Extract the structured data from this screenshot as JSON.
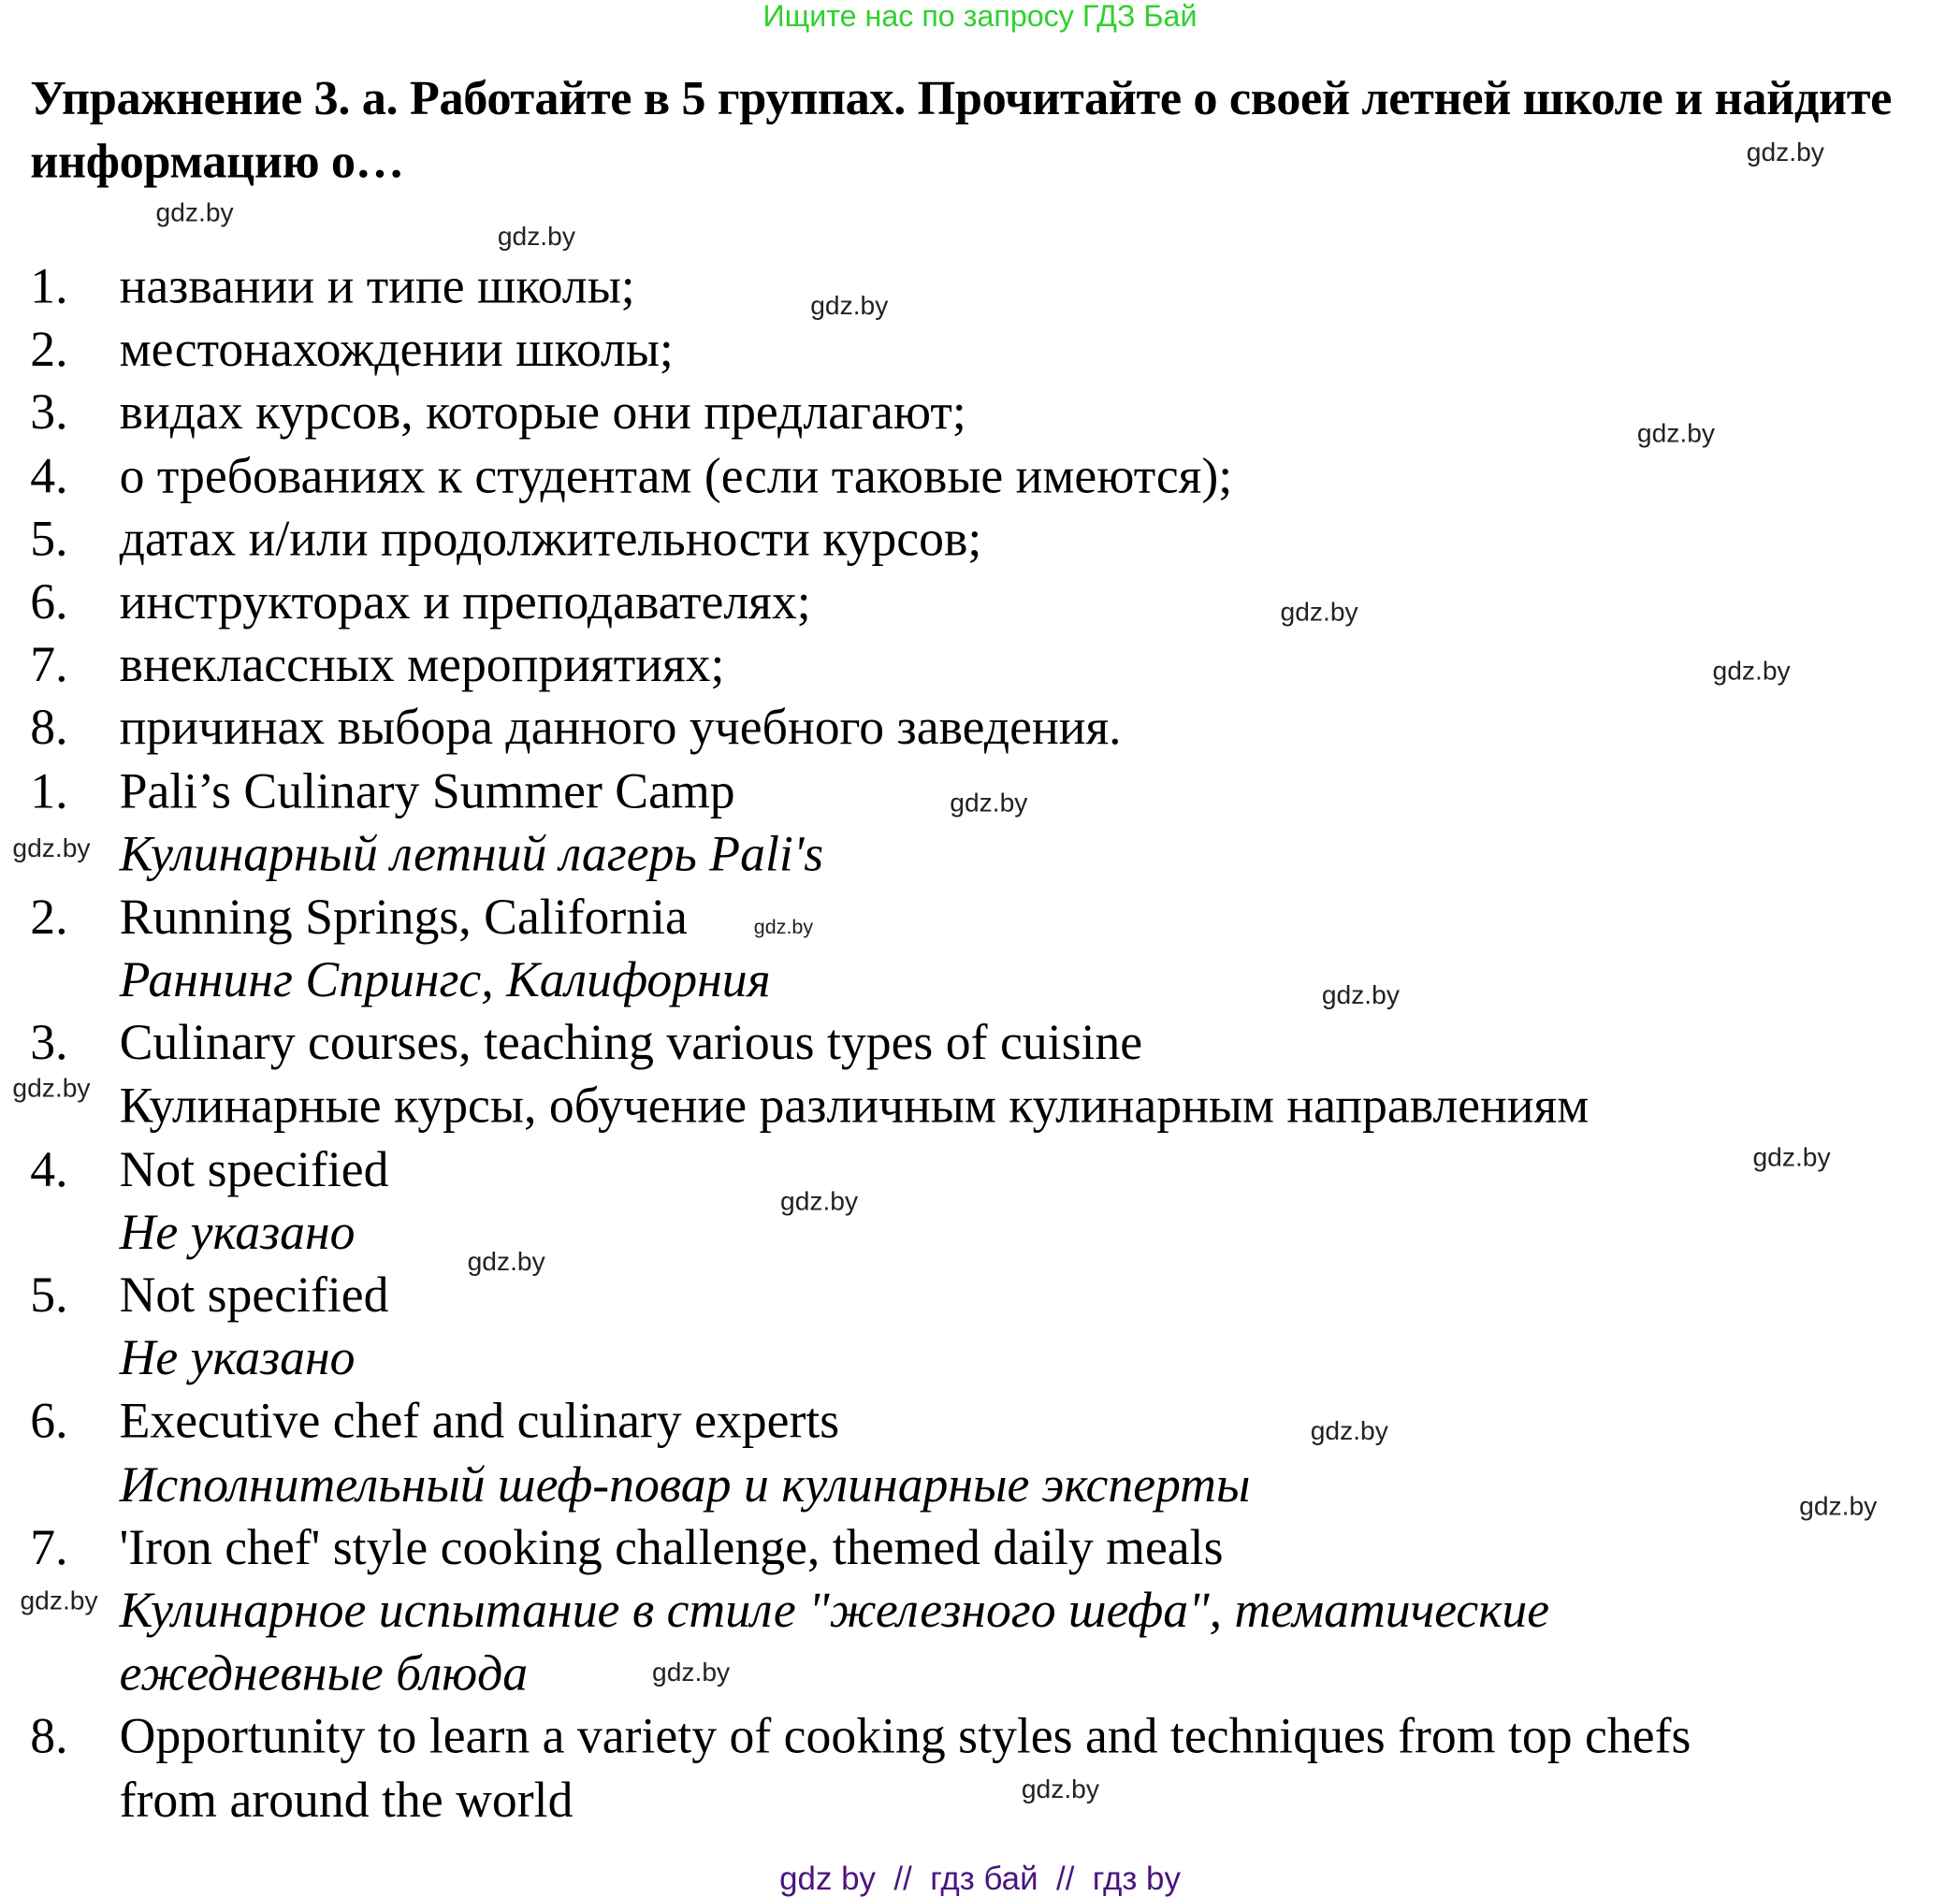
{
  "banner": "Ищите нас по запросу ГДЗ Бай",
  "title": "Упражнение 3. а. Работайте в 5 группах. Прочитайте о своей летней школе и найдите информацию о…",
  "rows": [
    {
      "num": "1.",
      "text": "названии и типе школы;",
      "italic": false
    },
    {
      "num": "2.",
      "text": "местонахождении школы;",
      "italic": false
    },
    {
      "num": "3.",
      "text": "видах курсов, которые они предлагают;",
      "italic": false
    },
    {
      "num": "4.",
      "text": "о требованиях к студентам (если таковые имеются);",
      "italic": false
    },
    {
      "num": "5.",
      "text": "датах и/или продолжительности курсов;",
      "italic": false
    },
    {
      "num": "6.",
      "text": "инструкторах и преподавателях;",
      "italic": false
    },
    {
      "num": "7.",
      "text": "внеклассных мероприятиях;",
      "italic": false
    },
    {
      "num": "8.",
      "text": "причинах выбора данного учебного заведения.",
      "italic": false
    },
    {
      "num": "1.",
      "text": "Pali’s Culinary Summer Camp",
      "italic": false
    },
    {
      "num": "",
      "text": "Кулинарный летний лагерь Pali's",
      "italic": true
    },
    {
      "num": "2.",
      "text": "Running Springs, California",
      "italic": false
    },
    {
      "num": "",
      "text": "Раннинг Спрингс, Калифорния",
      "italic": true
    },
    {
      "num": "3.",
      "text": "Culinary courses, teaching various types of cuisine",
      "italic": false
    },
    {
      "num": "",
      "text": "Кулинарные курсы, обучение различным кулинарным направлениям",
      "italic": false
    },
    {
      "num": "4.",
      "text": "Not specified",
      "italic": false
    },
    {
      "num": "",
      "text": "Не указано",
      "italic": true
    },
    {
      "num": "5.",
      "text": "Not specified",
      "italic": false
    },
    {
      "num": "",
      "text": "Не указано",
      "italic": true
    },
    {
      "num": "6.",
      "text": "Executive chef and culinary experts",
      "italic": false
    },
    {
      "num": "",
      "text": "Исполнительный шеф-повар и кулинарные эксперты",
      "italic": true
    },
    {
      "num": "7.",
      "text": "'Iron chef' style cooking challenge, themed daily meals",
      "italic": false
    },
    {
      "num": "",
      "text": "Кулинарное испытание в стиле \"железного шефа\", тематические",
      "italic": true
    },
    {
      "num": "",
      "text": "ежедневные блюда",
      "italic": true
    },
    {
      "num": "8.",
      "text": "Opportunity to learn a variety of cooking styles and techniques from top chefs",
      "italic": false
    },
    {
      "num": "",
      "text": "from around the world",
      "italic": false
    }
  ],
  "watermark": "gdz.by",
  "footer": "gdz by  //  гдз бай  //  гдз by"
}
